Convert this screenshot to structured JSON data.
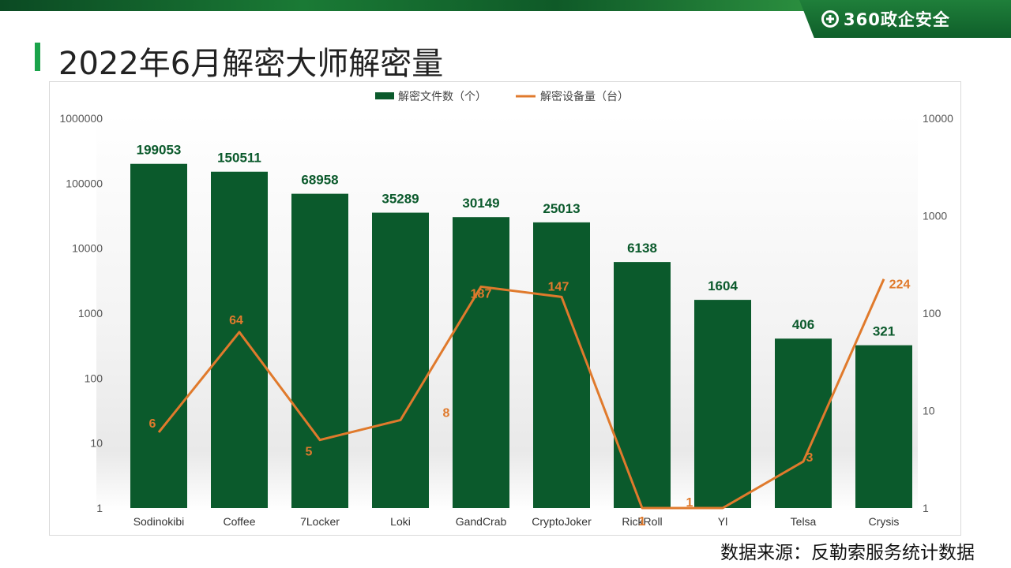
{
  "header": {
    "brand": "360政企安全",
    "title": "2022年6月解密大师解密量"
  },
  "footer": {
    "source": "数据来源：反勒索服务统计数据"
  },
  "colors": {
    "bar": "#0b5a2c",
    "line": "#e07a2c",
    "accent": "#1aa34a"
  },
  "chart_data": {
    "type": "bar",
    "categories": [
      "Sodinokibi",
      "Coffee",
      "7Locker",
      "Loki",
      "GandCrab",
      "CryptoJoker",
      "RickRoll",
      "Yl",
      "Telsa",
      "Crysis"
    ],
    "series": [
      {
        "name": "解密文件数（个）",
        "type": "bar",
        "axis": "left",
        "values": [
          199053,
          150511,
          68958,
          35289,
          30149,
          25013,
          6138,
          1604,
          406,
          321
        ]
      },
      {
        "name": "解密设备量（台）",
        "type": "line",
        "axis": "right",
        "values": [
          6,
          64,
          5,
          8,
          187,
          147,
          1,
          1,
          3,
          224
        ]
      }
    ],
    "y_left": {
      "scale": "log",
      "range": [
        1,
        1000000
      ],
      "ticks": [
        "1",
        "10",
        "100",
        "1000",
        "10000",
        "100000",
        "1000000"
      ]
    },
    "y_right": {
      "scale": "log",
      "range": [
        1,
        10000
      ],
      "ticks": [
        "1",
        "10",
        "100",
        "1000",
        "10000"
      ]
    },
    "legend": "top-center",
    "grid": false
  }
}
